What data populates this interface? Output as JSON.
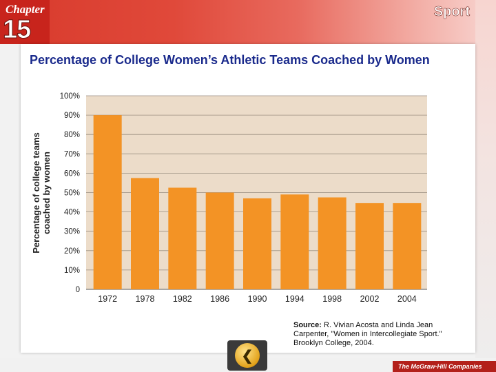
{
  "header": {
    "chapter_label": "Chapter",
    "chapter_number": "15",
    "section": "Sport"
  },
  "footer": {
    "publisher": "The McGraw-Hill Companies",
    "back_icon": "back-arrow-icon"
  },
  "source": {
    "label": "Source:",
    "text": "R. Vivian Acosta and Linda Jean Carpenter, \"Women in Intercollegiate Sport.\" Brooklyn College, 2004."
  },
  "colors": {
    "bar": "#f39325",
    "plot_bg": "#ecdcc9",
    "title": "#1a2a8c"
  },
  "chart_data": {
    "type": "bar",
    "title": "Percentage of College Women’s Athletic Teams Coached by Women",
    "xlabel": "",
    "ylabel": "Percentage of college teams coached by women",
    "categories": [
      "1972",
      "1978",
      "1982",
      "1986",
      "1990",
      "1994",
      "1998",
      "2002",
      "2004"
    ],
    "values": [
      90,
      57.5,
      52.5,
      50,
      47,
      49,
      47.5,
      44.5,
      44.5
    ],
    "yticks": [
      "0",
      "10%",
      "20%",
      "30%",
      "40%",
      "50%",
      "60%",
      "70%",
      "80%",
      "90%",
      "100%"
    ],
    "ylim": [
      0,
      100
    ],
    "grid": true,
    "legend": "none"
  }
}
